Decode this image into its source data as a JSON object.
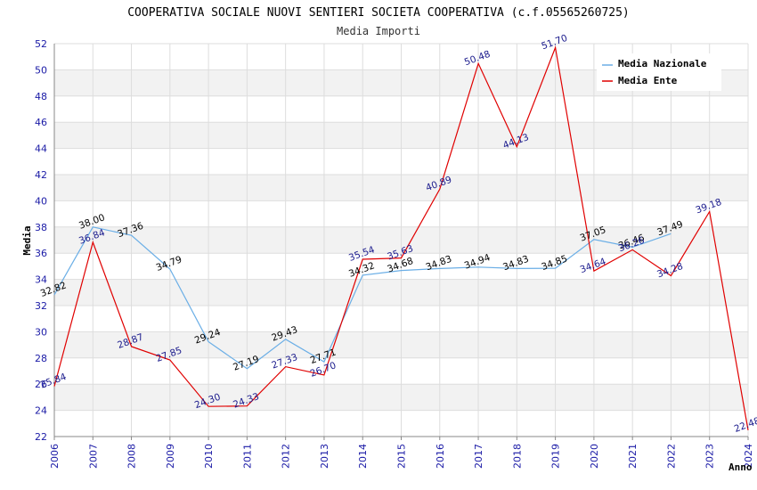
{
  "chart_data": {
    "type": "line",
    "title": "COOPERATIVA SOCIALE NUOVI SENTIERI SOCIETA COOPERATIVA (c.f.05565260725)",
    "subtitle": "Media Importi",
    "xlabel": "Anno",
    "ylabel": "Media",
    "ylim": [
      22,
      52
    ],
    "ytick_step": 2,
    "grid": true,
    "legend_position": "top-right",
    "x": [
      2006,
      2007,
      2008,
      2009,
      2010,
      2011,
      2012,
      2013,
      2014,
      2015,
      2016,
      2017,
      2018,
      2019,
      2020,
      2021,
      2022,
      2023,
      2024
    ],
    "series": [
      {
        "name": "Media Nazionale",
        "color": "#6aaee6",
        "label_color": "#000000",
        "values": [
          32.82,
          38.0,
          37.36,
          34.79,
          29.24,
          27.19,
          29.43,
          27.71,
          34.32,
          34.68,
          34.83,
          34.94,
          34.83,
          34.85,
          37.05,
          36.46,
          37.49,
          null,
          null
        ]
      },
      {
        "name": "Media Ente",
        "color": "#e00000",
        "label_color": "#1a1a8c",
        "values": [
          25.84,
          36.84,
          28.87,
          27.85,
          24.3,
          24.33,
          27.33,
          26.7,
          35.54,
          35.63,
          40.89,
          50.48,
          44.13,
          51.7,
          34.64,
          36.26,
          34.28,
          39.18,
          22.48
        ]
      }
    ]
  }
}
